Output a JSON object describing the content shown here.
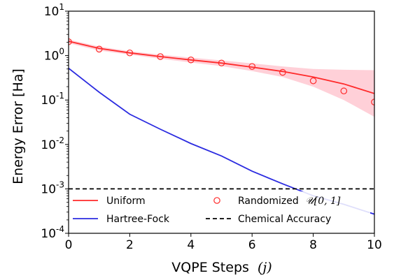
{
  "chart_data": {
    "type": "line",
    "xlabel": "VQPE Steps",
    "xlabel_symbol": "(j)",
    "ylabel": "Energy Error [Ha]",
    "xlim": [
      0,
      10
    ],
    "ylim": [
      0.0001,
      10
    ],
    "y_scale": "log",
    "x_ticks": [
      0,
      2,
      4,
      6,
      8,
      10
    ],
    "y_ticks": [
      {
        "value": 0.0001,
        "base": "10",
        "exp": "-4"
      },
      {
        "value": 0.001,
        "base": "10",
        "exp": "-3"
      },
      {
        "value": 0.01,
        "base": "10",
        "exp": "-2"
      },
      {
        "value": 0.1,
        "base": "10",
        "exp": "-1"
      },
      {
        "value": 1,
        "base": "10",
        "exp": "0"
      },
      {
        "value": 10,
        "base": "10",
        "exp": "1"
      }
    ],
    "legend_position": "bottom",
    "series": [
      {
        "name": "Uniform",
        "style": "line",
        "color": "#ff2a2a",
        "x": [
          0,
          1,
          2,
          3,
          4,
          5,
          6,
          7,
          8,
          9,
          10
        ],
        "y": [
          2.1,
          1.45,
          1.15,
          0.95,
          0.8,
          0.68,
          0.55,
          0.44,
          0.33,
          0.23,
          0.14
        ],
        "band_lower": [
          1.9,
          1.3,
          1.05,
          0.85,
          0.7,
          0.58,
          0.45,
          0.33,
          0.2,
          0.1,
          0.042
        ],
        "band_upper": [
          2.3,
          1.6,
          1.25,
          1.05,
          0.9,
          0.78,
          0.67,
          0.57,
          0.5,
          0.48,
          0.47
        ],
        "band_color": "#ffc0cb"
      },
      {
        "name": "Hartree-Fock",
        "style": "line",
        "color": "#2b2be0",
        "x": [
          0,
          1,
          2,
          3,
          4,
          5,
          6,
          7,
          8,
          9,
          10
        ],
        "y": [
          0.52,
          0.15,
          0.048,
          0.022,
          0.0105,
          0.0055,
          0.0025,
          0.0013,
          0.0007,
          0.00045,
          0.00027
        ]
      },
      {
        "name": "Randomized",
        "name_symbol": "𝒰[0, 1]",
        "style": "markers",
        "color": "#ff2a2a",
        "x": [
          0,
          1,
          2,
          3,
          4,
          5,
          6,
          7,
          8,
          9,
          10
        ],
        "y": [
          2.05,
          1.4,
          1.15,
          0.95,
          0.8,
          0.68,
          0.57,
          0.42,
          0.27,
          0.16,
          0.09
        ]
      },
      {
        "name": "Chemical Accuracy",
        "style": "dashed",
        "color": "#000000",
        "y_constant": 0.001
      }
    ]
  }
}
